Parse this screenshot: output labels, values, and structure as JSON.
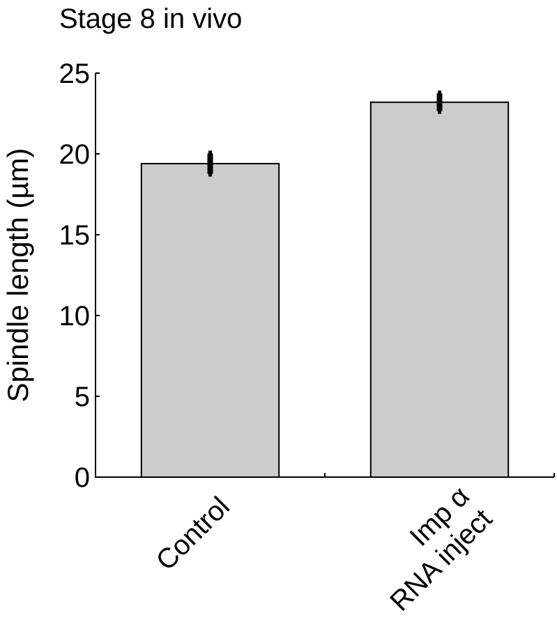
{
  "chart_data": {
    "type": "bar",
    "title": "Stage 8 in vivo",
    "xlabel": "",
    "ylabel": "Spindle length (µm)",
    "categories": [
      [
        "Control"
      ],
      [
        "Imp α",
        "RNA inject"
      ]
    ],
    "values": [
      19.4,
      23.2
    ],
    "errors": [
      0.8,
      0.72
    ],
    "ylim": [
      0,
      25
    ],
    "yticks": [
      0,
      5,
      10,
      15,
      20,
      25
    ],
    "grid": false,
    "bar_color": "#cccccc",
    "edge_color": "#000000"
  }
}
